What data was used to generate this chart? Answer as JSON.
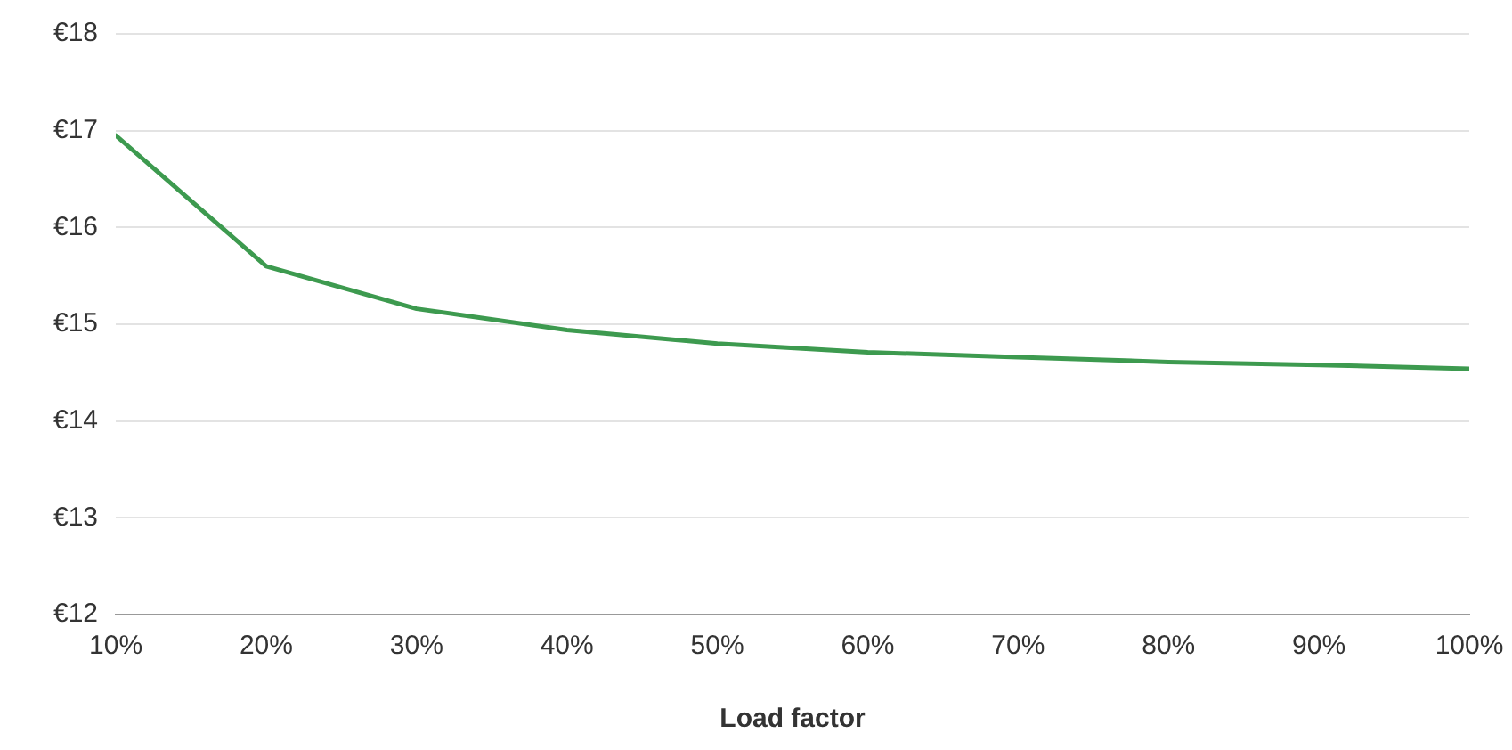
{
  "chart_data": {
    "type": "line",
    "xlabel": "Load factor",
    "x": [
      10,
      20,
      30,
      40,
      50,
      60,
      70,
      80,
      90,
      100
    ],
    "series": [
      {
        "color": "#3d9a4f",
        "values": [
          16.95,
          15.6,
          15.16,
          14.94,
          14.8,
          14.71,
          14.66,
          14.61,
          14.58,
          14.54
        ]
      }
    ],
    "xlim": [
      10,
      100
    ],
    "xticks": [
      {
        "value": 10,
        "label": "10%"
      },
      {
        "value": 20,
        "label": "20%"
      },
      {
        "value": 30,
        "label": "30%"
      },
      {
        "value": 40,
        "label": "40%"
      },
      {
        "value": 50,
        "label": "50%"
      },
      {
        "value": 60,
        "label": "60%"
      },
      {
        "value": 70,
        "label": "70%"
      },
      {
        "value": 80,
        "label": "80%"
      },
      {
        "value": 90,
        "label": "90%"
      },
      {
        "value": 100,
        "label": "100%"
      }
    ],
    "ylim": [
      12,
      18
    ],
    "yticks": [
      {
        "value": 12,
        "label": "€12"
      },
      {
        "value": 13,
        "label": "€13"
      },
      {
        "value": 14,
        "label": "€14"
      },
      {
        "value": 15,
        "label": "€15"
      },
      {
        "value": 16,
        "label": "€16"
      },
      {
        "value": 17,
        "label": "€17"
      },
      {
        "value": 18,
        "label": "€18"
      }
    ],
    "grid": "y",
    "legend": false,
    "marker": "none",
    "line_style": "solid"
  }
}
